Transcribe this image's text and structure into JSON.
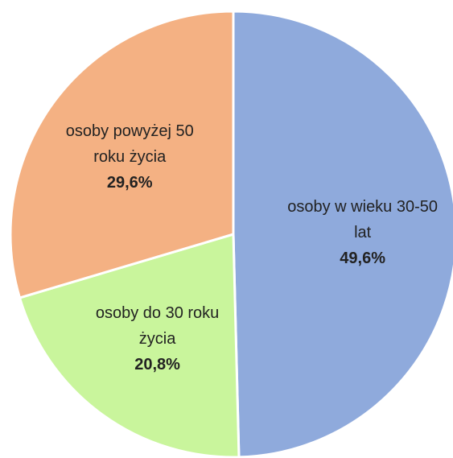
{
  "chart_data": {
    "type": "pie",
    "categories": [
      "osoby w wieku 30-50 lat",
      "osoby do 30 roku życia",
      "osoby powyżej 50 roku życia"
    ],
    "values": [
      49.6,
      20.8,
      29.6
    ],
    "value_labels": [
      "49,6%",
      "20,8%",
      "29,6%"
    ],
    "colors": [
      "#8faadc",
      "#c9f59c",
      "#f4b183"
    ]
  }
}
